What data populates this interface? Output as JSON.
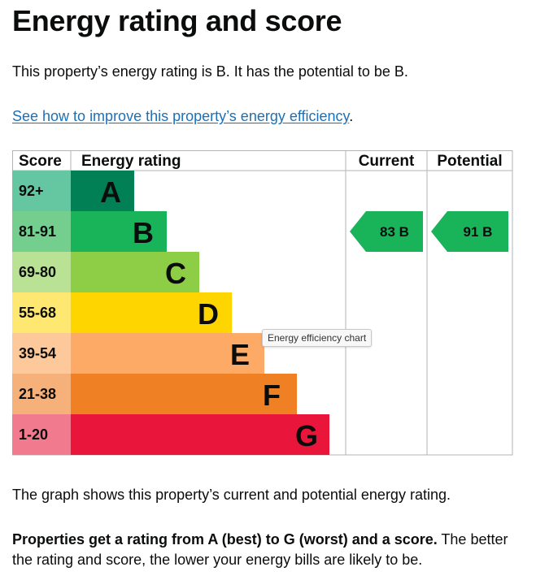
{
  "page": {
    "title": "Energy rating and score",
    "intro": "This property’s energy rating is B. It has the potential to be B.",
    "improve_link": "See how to improve this property’s energy efficiency",
    "improve_suffix": ".",
    "graph_note": "The graph shows this property’s current and potential energy rating.",
    "explain_bold": "Properties get a rating from A (best) to G (worst) and a score.",
    "explain_rest": " The better the rating and score, the lower your energy bills are likely to be.",
    "tooltip": "Energy efficiency chart"
  },
  "chart_data": {
    "type": "table",
    "headers": {
      "score": "Score",
      "rating": "Energy rating",
      "current": "Current",
      "potential": "Potential"
    },
    "bands": [
      {
        "letter": "A",
        "range": "92+",
        "color": "#008054",
        "tint": "#64c7a1"
      },
      {
        "letter": "B",
        "range": "81-91",
        "color": "#19b459",
        "tint": "#74cf8f"
      },
      {
        "letter": "C",
        "range": "69-80",
        "color": "#8dce46",
        "tint": "#b9e294"
      },
      {
        "letter": "D",
        "range": "55-68",
        "color": "#ffd500",
        "tint": "#ffe872"
      },
      {
        "letter": "E",
        "range": "39-54",
        "color": "#fcaa65",
        "tint": "#fdc99a"
      },
      {
        "letter": "F",
        "range": "21-38",
        "color": "#ef8023",
        "tint": "#f6b07a"
      },
      {
        "letter": "G",
        "range": "1-20",
        "color": "#e9153b",
        "tint": "#f27a8e"
      }
    ],
    "current": {
      "score": 83,
      "letter": "B",
      "label": "83  B",
      "color": "#19b459"
    },
    "potential": {
      "score": 91,
      "letter": "B",
      "label": "91  B",
      "color": "#19b459"
    }
  }
}
